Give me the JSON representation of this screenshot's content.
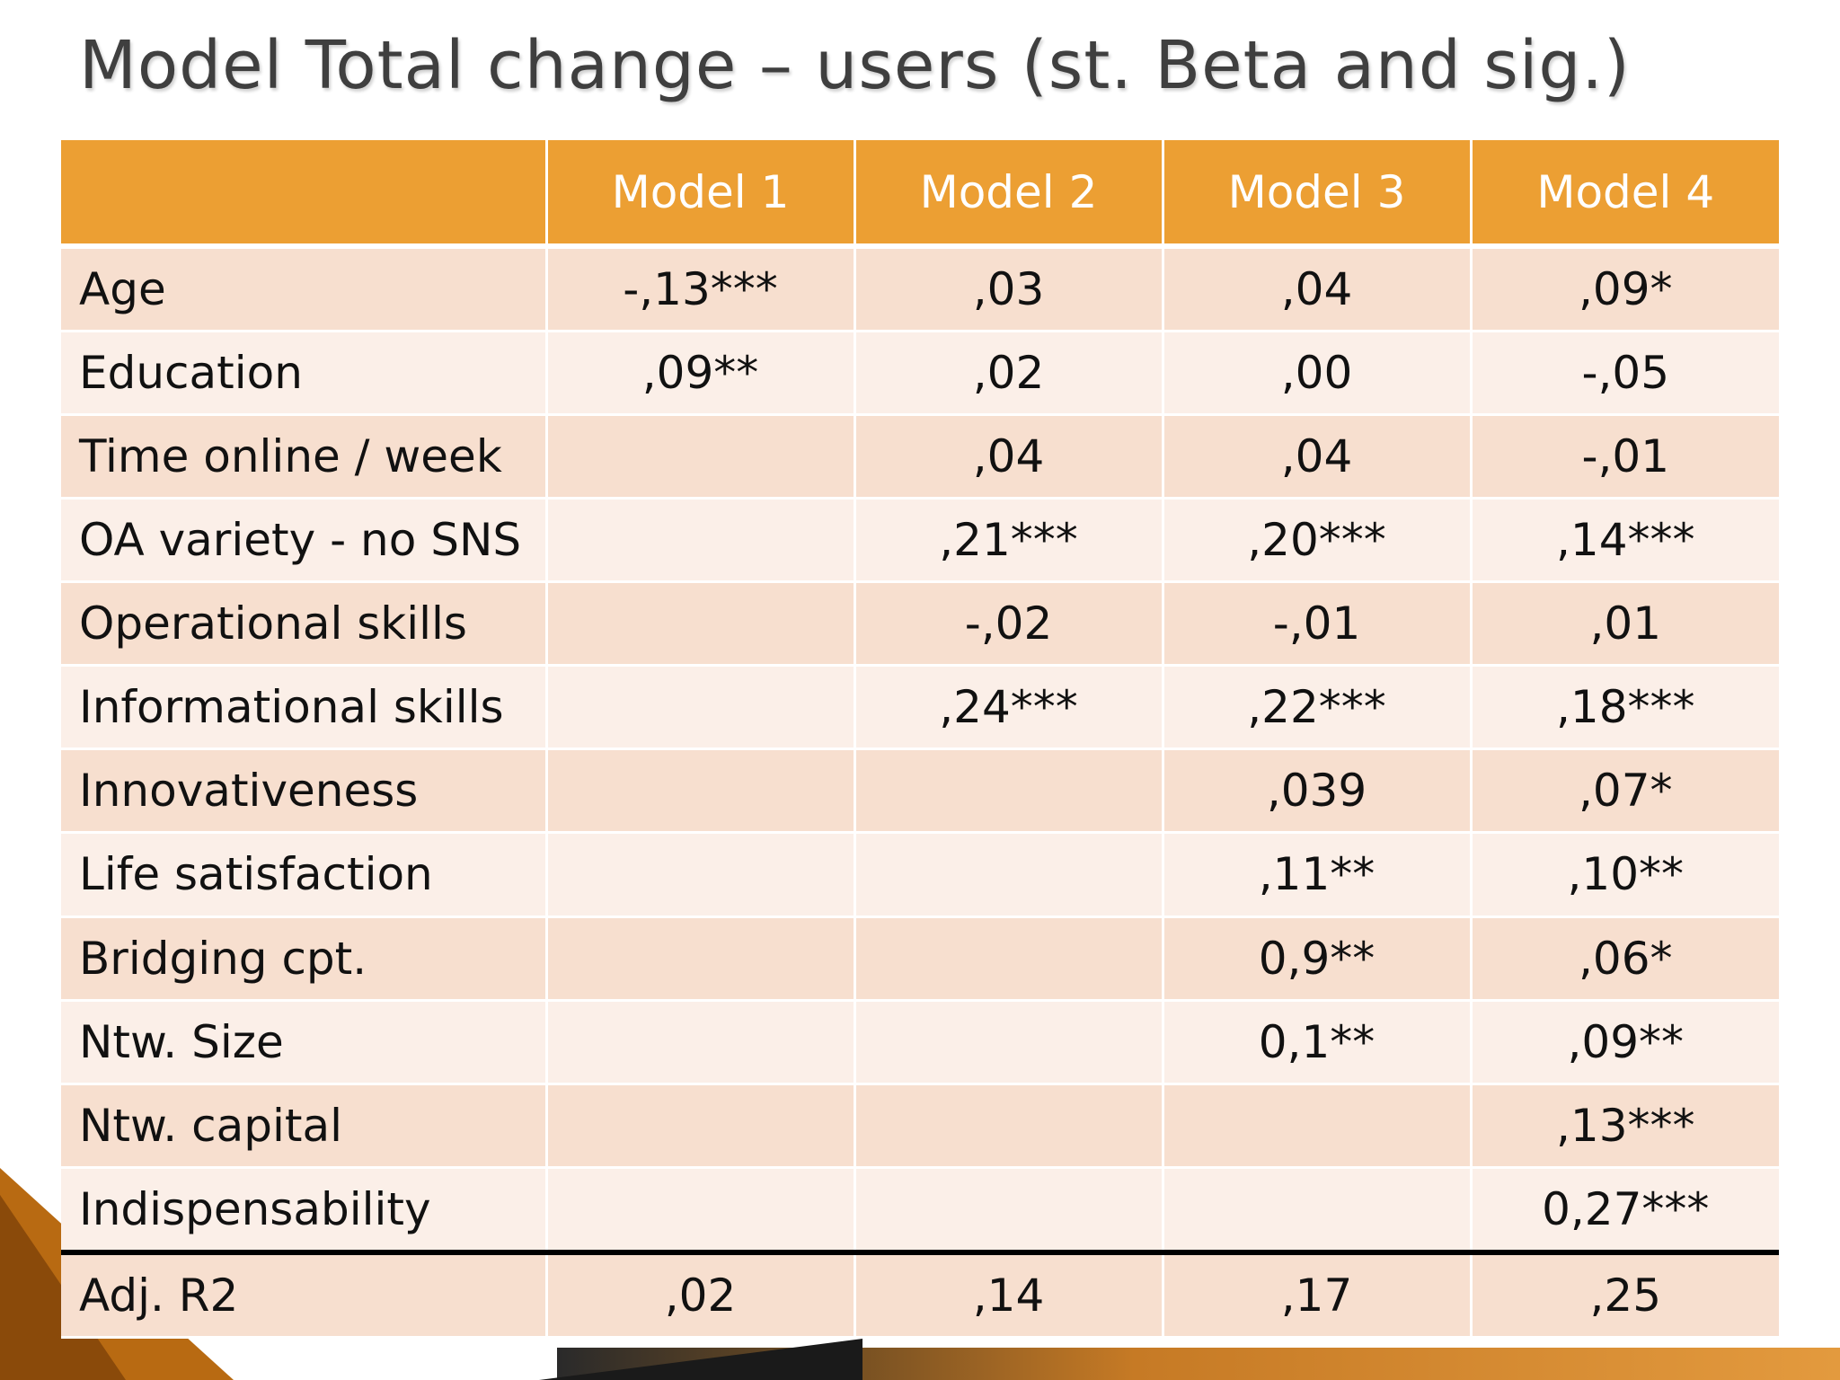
{
  "title": "Model Total change – users (st. Beta and sig.)",
  "colors": {
    "header": "#ec9f33",
    "row_odd": "#f7dfcf",
    "row_even": "#fbefe8",
    "title_text": "#3f3f3f"
  },
  "table": {
    "headers": [
      "",
      "Model 1",
      "Model 2",
      "Model 3",
      "Model 4"
    ],
    "rows": [
      [
        "Age",
        "-,13***",
        ",03",
        ",04",
        ",09*"
      ],
      [
        "Education",
        ",09**",
        ",02",
        ",00",
        "-,05"
      ],
      [
        "Time online / week",
        "",
        ",04",
        ",04",
        "-,01"
      ],
      [
        "OA variety - no SNS",
        "",
        ",21***",
        ",20***",
        ",14***"
      ],
      [
        "Operational skills",
        "",
        "-,02",
        "-,01",
        ",01"
      ],
      [
        "Informational skills",
        "",
        ",24***",
        ",22***",
        ",18***"
      ],
      [
        "Innovativeness",
        "",
        "",
        ",039",
        ",07*"
      ],
      [
        "Life satisfaction",
        "",
        "",
        ",11**",
        ",10**"
      ],
      [
        "Bridging cpt.",
        "",
        "",
        "0,9**",
        ",06*"
      ],
      [
        "Ntw. Size",
        "",
        "",
        "0,1**",
        ",09**"
      ],
      [
        "Ntw. capital",
        "",
        "",
        "",
        ",13***"
      ],
      [
        "Indispensability",
        "",
        "",
        "",
        "0,27***"
      ],
      [
        "Adj. R2",
        ",02",
        ",14",
        ",17",
        ",25"
      ]
    ]
  }
}
